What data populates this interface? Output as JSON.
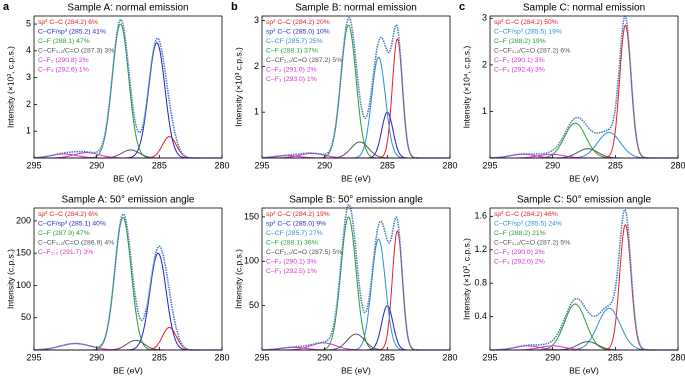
{
  "chart_data": [
    {
      "type": "line",
      "label": "a",
      "title": "Sample A: normal emission",
      "xlabel": "BE (eV)",
      "ylabel": "Intensity (×10³, c.p.s.)",
      "xlim": [
        295,
        280
      ],
      "xticks": [
        295,
        290,
        285,
        280
      ],
      "ylim": [
        0,
        5.3
      ],
      "yticks": [
        1,
        2,
        3,
        4,
        5
      ],
      "envelope_color": "#4a7fb8",
      "series": [
        {
          "name": "sp² C–C (284.2) 6%",
          "color": "#e3202a",
          "center": 284.2,
          "height": 0.8,
          "width": 0.55
        },
        {
          "name": "C–CF/sp³ (285.2) 41%",
          "color": "#1f1fd0",
          "center": 285.2,
          "height": 4.3,
          "width": 0.65
        },
        {
          "name": "C–F (288.1) 47%",
          "color": "#2a9a3a",
          "center": 288.1,
          "height": 5.0,
          "width": 0.65
        },
        {
          "name": "C–CF₂,₃/C=O (287.3) 3%",
          "color": "#555555",
          "center": 287.3,
          "height": 0.3,
          "width": 0.7
        },
        {
          "name": "C–F₂ (290.8) 2%",
          "color": "#d62fd0",
          "center": 290.8,
          "height": 0.2,
          "width": 1.0
        },
        {
          "name": "C–F₃ (292.6) 1%",
          "color": "#d62fd0",
          "center": 292.6,
          "height": 0.15,
          "width": 1.0
        }
      ]
    },
    {
      "type": "line",
      "label": "b",
      "title": "Sample B: normal emission",
      "xlabel": "BE (eV)",
      "ylabel": "Intensity (×10³ c.p.s.)",
      "xlim": [
        295,
        280
      ],
      "xticks": [
        295,
        290,
        285,
        280
      ],
      "ylim": [
        0,
        3.1
      ],
      "yticks": [
        1,
        2,
        3
      ],
      "envelope_color": "#4a7fb8",
      "series": [
        {
          "name": "sp² C–C (284.2) 20%",
          "color": "#e3202a",
          "center": 284.2,
          "height": 2.6,
          "width": 0.4
        },
        {
          "name": "sp³ C–C (285.0) 10%",
          "color": "#1f1fd0",
          "center": 285.0,
          "height": 1.0,
          "width": 0.45
        },
        {
          "name": "C–CF (285.7) 25%",
          "color": "#2a8fd6",
          "center": 285.7,
          "height": 2.2,
          "width": 0.55
        },
        {
          "name": "C–F (288.1) 37%",
          "color": "#2a9a3a",
          "center": 288.1,
          "height": 2.9,
          "width": 0.6
        },
        {
          "name": "C–CF₂,₃/C=O (287.2) 5%",
          "color": "#555555",
          "center": 287.2,
          "height": 0.35,
          "width": 0.7
        },
        {
          "name": "C–F₂ (291.0) 2%",
          "color": "#d62fd0",
          "center": 291.0,
          "height": 0.1,
          "width": 1.0
        },
        {
          "name": "C–F₃ (293.0) 1%",
          "color": "#d62fd0",
          "center": 293.0,
          "height": 0.05,
          "width": 1.0
        }
      ]
    },
    {
      "type": "line",
      "label": "c",
      "title": "Sample C: normal emission",
      "xlabel": "BE (eV)",
      "ylabel": "Intensity (×10⁴, c.p.s.)",
      "xlim": [
        295,
        280
      ],
      "xticks": [
        295,
        290,
        285,
        280
      ],
      "ylim": [
        0,
        3.05
      ],
      "yticks": [
        1,
        2,
        3
      ],
      "envelope_color": "#4a7fb8",
      "series": [
        {
          "name": "sp² C–C (284.2) 50%",
          "color": "#e3202a",
          "center": 284.2,
          "height": 2.85,
          "width": 0.45
        },
        {
          "name": "C–CF/sp³ (285.5) 19%",
          "color": "#2a8fd6",
          "center": 285.5,
          "height": 0.55,
          "width": 0.9
        },
        {
          "name": "C–F (288.2) 19%",
          "color": "#2a9a3a",
          "center": 288.2,
          "height": 0.75,
          "width": 0.85
        },
        {
          "name": "C–CF₂,₃/C=O (287.2) 6%",
          "color": "#555555",
          "center": 287.2,
          "height": 0.2,
          "width": 0.8
        },
        {
          "name": "C–F₂ (290.1) 3%",
          "color": "#d62fd0",
          "center": 290.1,
          "height": 0.08,
          "width": 1.0
        },
        {
          "name": "C–F₃ (292.4) 3%",
          "color": "#d62fd0",
          "center": 292.4,
          "height": 0.08,
          "width": 1.0
        }
      ]
    },
    {
      "type": "line",
      "title": "Sample A: 50° emission angle",
      "xlabel": "BE (eV)",
      "ylabel": "Intensity (c.p.s.)",
      "xlim": [
        295,
        280
      ],
      "xticks": [
        295,
        290,
        285,
        280
      ],
      "ylim": [
        0,
        220
      ],
      "yticks": [
        50,
        100,
        150,
        200
      ],
      "envelope_color": "#4a7fb8",
      "series": [
        {
          "name": "sp² C–C (284.2) 6%",
          "color": "#e3202a",
          "center": 284.2,
          "height": 35,
          "width": 0.55
        },
        {
          "name": "C–CF/sp³ (285.1) 40%",
          "color": "#1f1fd0",
          "center": 285.1,
          "height": 150,
          "width": 0.65
        },
        {
          "name": "C–F (287.9) 47%",
          "color": "#2a9a3a",
          "center": 287.9,
          "height": 205,
          "width": 0.65
        },
        {
          "name": "C–CF₂,₃/C=O (286.9) 4%",
          "color": "#555555",
          "center": 286.9,
          "height": 15,
          "width": 0.7
        },
        {
          "name": "C–F₂,₃ (291.7) 3%",
          "color": "#d62fd0",
          "center": 291.7,
          "height": 10,
          "width": 1.2
        }
      ]
    },
    {
      "type": "line",
      "title": "Sample B: 50° emission angle",
      "xlabel": "BE (eV)",
      "ylabel": "Intensity (c.p.s.)",
      "xlim": [
        295,
        280
      ],
      "xticks": [
        295,
        290,
        285,
        280
      ],
      "ylim": [
        0,
        160
      ],
      "yticks": [
        50,
        100,
        150
      ],
      "envelope_color": "#4a7fb8",
      "series": [
        {
          "name": "sp² C–C (284.2) 19%",
          "color": "#e3202a",
          "center": 284.2,
          "height": 134,
          "width": 0.4
        },
        {
          "name": "sp³ C–C (285.0) 9%",
          "color": "#1f1fd0",
          "center": 285.0,
          "height": 50,
          "width": 0.45
        },
        {
          "name": "C–CF (285.7) 27%",
          "color": "#2a8fd6",
          "center": 285.7,
          "height": 125,
          "width": 0.55
        },
        {
          "name": "C–F (288.1) 36%",
          "color": "#2a9a3a",
          "center": 288.1,
          "height": 150,
          "width": 0.6
        },
        {
          "name": "C–CF₂,₃/C=O (287.5) 5%",
          "color": "#555555",
          "center": 287.5,
          "height": 18,
          "width": 0.7
        },
        {
          "name": "C–F₂ (290.1) 3%",
          "color": "#d62fd0",
          "center": 290.1,
          "height": 8,
          "width": 1.0
        },
        {
          "name": "C–F₃ (292.5) 1%",
          "color": "#d62fd0",
          "center": 292.5,
          "height": 3,
          "width": 1.0
        }
      ]
    },
    {
      "type": "line",
      "title": "Sample C: 50° emission angle",
      "xlabel": "BE (eV)",
      "ylabel": "Intensity (×10³, c.p.s.)",
      "xlim": [
        295,
        280
      ],
      "xticks": [
        295,
        290,
        285,
        280
      ],
      "ylim": [
        0,
        1.7
      ],
      "yticks": [
        0.4,
        0.8,
        1.2,
        1.6
      ],
      "envelope_color": "#4a7fb8",
      "series": [
        {
          "name": "sp² C–C (284.2) 46%",
          "color": "#e3202a",
          "center": 284.2,
          "height": 1.5,
          "width": 0.45
        },
        {
          "name": "C–CF/sp³ (285.5) 24%",
          "color": "#2a8fd6",
          "center": 285.5,
          "height": 0.5,
          "width": 0.9
        },
        {
          "name": "C–F (288.2) 21%",
          "color": "#2a9a3a",
          "center": 288.2,
          "height": 0.55,
          "width": 0.85
        },
        {
          "name": "C–CF₂,₃/C=O (287.2) 5%",
          "color": "#555555",
          "center": 287.2,
          "height": 0.1,
          "width": 0.8
        },
        {
          "name": "C–F₂ (290.0) 2%",
          "color": "#d62fd0",
          "center": 290.0,
          "height": 0.05,
          "width": 1.0
        },
        {
          "name": "C–F₃ (292.0) 2%",
          "color": "#d62fd0",
          "center": 292.0,
          "height": 0.05,
          "width": 1.0
        }
      ]
    }
  ]
}
